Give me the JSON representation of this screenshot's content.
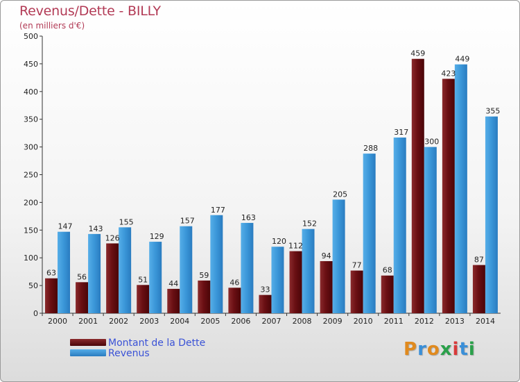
{
  "title": "Revenus/Dette - BILLY",
  "subtitle": "(en milliers d'€)",
  "colors": {
    "dette": "#6a0f13",
    "revenus": "#3a96d8",
    "title": "#b23a55",
    "legend_text": "#3a52d6"
  },
  "legend": [
    {
      "label": "Montant de la Dette",
      "color": "#6a0f13"
    },
    {
      "label": "Revenus",
      "color": "#3a96d8"
    }
  ],
  "logo": {
    "text": "Proxiti"
  },
  "chart_data": {
    "type": "bar",
    "title": "Revenus/Dette - BILLY",
    "subtitle": "(en milliers d'€)",
    "categories": [
      "2000",
      "2001",
      "2002",
      "2003",
      "2004",
      "2005",
      "2006",
      "2007",
      "2008",
      "2009",
      "2010",
      "2011",
      "2012",
      "2013",
      "2014"
    ],
    "series": [
      {
        "name": "Montant de la Dette",
        "values": [
          63,
          56,
          126,
          51,
          44,
          59,
          46,
          33,
          112,
          94,
          77,
          68,
          459,
          423,
          87
        ]
      },
      {
        "name": "Revenus",
        "values": [
          147,
          143,
          155,
          129,
          157,
          177,
          163,
          120,
          152,
          205,
          288,
          317,
          300,
          449,
          355
        ]
      }
    ],
    "ylim": [
      0,
      500
    ],
    "yticks": [
      0,
      50,
      100,
      150,
      200,
      250,
      300,
      350,
      400,
      450,
      500
    ],
    "grid": false,
    "legend_position": "bottom-left"
  }
}
